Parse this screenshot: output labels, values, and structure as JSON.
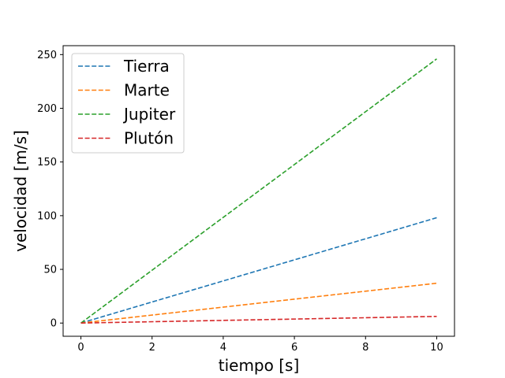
{
  "chart_data": {
    "type": "line",
    "title": "",
    "xlabel": "tiempo [s]",
    "ylabel": "velocidad [m/s]",
    "xlim": [
      -0.5,
      10.5
    ],
    "ylim": [
      -12.3,
      258.3
    ],
    "xticks": [
      0,
      2,
      4,
      6,
      8,
      10
    ],
    "yticks": [
      0,
      50,
      100,
      150,
      200,
      250
    ],
    "grid": false,
    "legend_position": "top-left",
    "line_style": "dashed",
    "x": [
      0,
      10
    ],
    "series": [
      {
        "name": "Tierra",
        "color": "#1f77b4",
        "values": [
          0,
          98.1
        ]
      },
      {
        "name": "Marte",
        "color": "#ff7f0e",
        "values": [
          0,
          37.1
        ]
      },
      {
        "name": "Jupiter",
        "color": "#2ca02c",
        "values": [
          0,
          246.0
        ]
      },
      {
        "name": "Plutón",
        "color": "#d62728",
        "values": [
          0,
          6.2
        ]
      }
    ]
  }
}
